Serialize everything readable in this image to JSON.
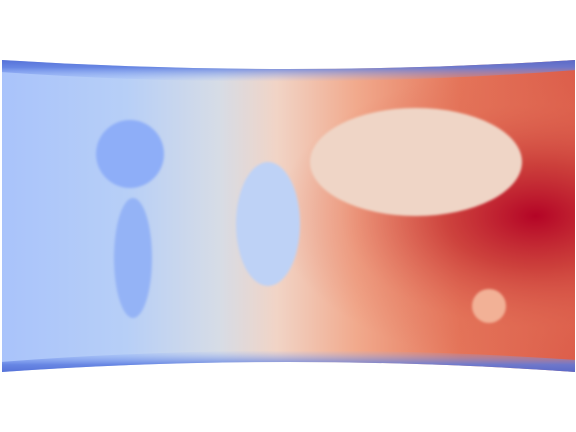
{
  "scene": {
    "subject": "field-map-rectangle",
    "color_map": [
      "#3b4cc0",
      "#6f92f3",
      "#aac7fd",
      "#dddddd",
      "#f7b89c",
      "#e7745b",
      "#b40426"
    ],
    "inclusions": [
      {
        "name": "upper-left-circle-inclusion",
        "color": "#8eaef8"
      },
      {
        "name": "lower-left-vertical-ellipse-inclusion",
        "color": "#94b3f6"
      },
      {
        "name": "center-vertical-ellipse-inclusion",
        "color": "#bed2f6"
      },
      {
        "name": "upper-right-horizontal-ellipse-inclusion",
        "color": "#efd5c6"
      },
      {
        "name": "lower-right-small-circle-inclusion",
        "color": "#f2b196"
      }
    ],
    "hot_spot_color": "#b40426",
    "boundary_color": "#3b4cc0"
  }
}
